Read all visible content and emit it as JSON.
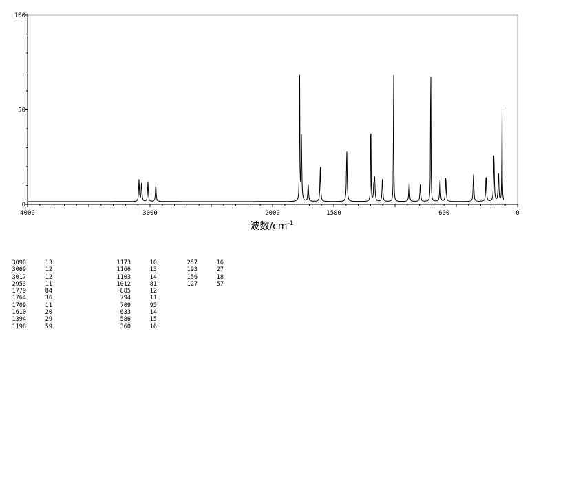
{
  "chart_data": {
    "type": "line",
    "title": "",
    "xlabel": "波数/cm",
    "xlabel_superscript": "-1",
    "ylabel": "",
    "x_reversed": true,
    "xlim": [
      4000,
      0
    ],
    "ylim": [
      0,
      100
    ],
    "x_ticks": [
      "4000",
      "3000",
      "2000",
      "1500",
      "600",
      "0"
    ],
    "y_ticks": [
      "0",
      "50",
      "100"
    ],
    "x_tick_values": [
      4000,
      3000,
      2000,
      1500,
      600,
      0
    ],
    "y_tick_values": [
      0,
      50,
      100
    ],
    "grid": false,
    "baseline": 1.5,
    "peaks": [
      {
        "x": 3090,
        "y": 13
      },
      {
        "x": 3069,
        "y": 12
      },
      {
        "x": 3017,
        "y": 12
      },
      {
        "x": 2953,
        "y": 11
      },
      {
        "x": 1779,
        "y": 84
      },
      {
        "x": 1764,
        "y": 36
      },
      {
        "x": 1709,
        "y": 11
      },
      {
        "x": 1610,
        "y": 20
      },
      {
        "x": 1394,
        "y": 29
      },
      {
        "x": 1198,
        "y": 59
      },
      {
        "x": 1173,
        "y": 10
      },
      {
        "x": 1166,
        "y": 13
      },
      {
        "x": 1103,
        "y": 14
      },
      {
        "x": 1012,
        "y": 81
      },
      {
        "x": 885,
        "y": 12
      },
      {
        "x": 794,
        "y": 11
      },
      {
        "x": 709,
        "y": 95
      },
      {
        "x": 633,
        "y": 14
      },
      {
        "x": 586,
        "y": 15
      },
      {
        "x": 360,
        "y": 16
      },
      {
        "x": 257,
        "y": 16
      },
      {
        "x": 193,
        "y": 27
      },
      {
        "x": 156,
        "y": 18
      },
      {
        "x": 127,
        "y": 57
      }
    ]
  },
  "peak_table": [
    [
      {
        "wn": "3090",
        "int": "13"
      },
      {
        "wn": "3069",
        "int": "12"
      },
      {
        "wn": "3017",
        "int": "12"
      },
      {
        "wn": "2953",
        "int": "11"
      },
      {
        "wn": "1779",
        "int": "84"
      },
      {
        "wn": "1764",
        "int": "36"
      },
      {
        "wn": "1709",
        "int": "11"
      },
      {
        "wn": "1610",
        "int": "20"
      },
      {
        "wn": "1394",
        "int": "29"
      },
      {
        "wn": "1198",
        "int": "59"
      }
    ],
    [
      {
        "wn": "1173",
        "int": "10"
      },
      {
        "wn": "1166",
        "int": "13"
      },
      {
        "wn": "1103",
        "int": "14"
      },
      {
        "wn": "1012",
        "int": "81"
      },
      {
        "wn": "885",
        "int": "12"
      },
      {
        "wn": "794",
        "int": "11"
      },
      {
        "wn": "709",
        "int": "95"
      },
      {
        "wn": "633",
        "int": "14"
      },
      {
        "wn": "586",
        "int": "15"
      },
      {
        "wn": "360",
        "int": "16"
      }
    ],
    [
      {
        "wn": "257",
        "int": "16"
      },
      {
        "wn": "193",
        "int": "27"
      },
      {
        "wn": "156",
        "int": "18"
      },
      {
        "wn": "127",
        "int": "57"
      }
    ]
  ]
}
